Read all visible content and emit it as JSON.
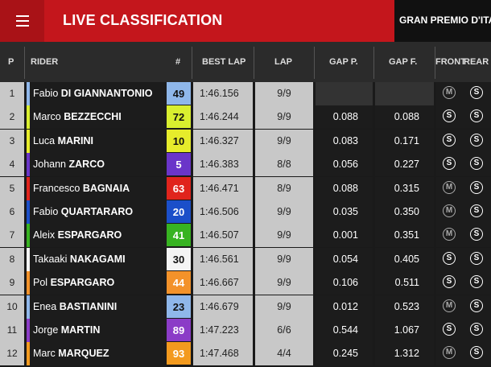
{
  "header_bar": {
    "title": "LIVE CLASSIFICATION",
    "event": "GRAN PREMIO D'ITAL",
    "menu_icon": "hamburger-menu-icon"
  },
  "columns": {
    "pos": "P",
    "rider": "RIDER",
    "number": "#",
    "best_lap": "BEST LAP",
    "lap": "LAP",
    "gap_prev": "GAP P.",
    "gap_first": "GAP F.",
    "front": "FRONT",
    "rear": "REAR"
  },
  "colors": {
    "brand_red": "#c4161c",
    "light_cell": "#c8c8c8",
    "dark_cell": "#1c1c1c"
  },
  "rows": [
    {
      "pos": "1",
      "first": "Fabio",
      "last": "DI GIANNANTONIO",
      "num": "49",
      "num_bg": "#8fb7ea",
      "num_fg": "#111",
      "best": "1:46.156",
      "lap": "9/9",
      "gap_p": "",
      "gap_f": "",
      "front": "M",
      "rear": "S"
    },
    {
      "pos": "2",
      "first": "Marco",
      "last": "BEZZECCHI",
      "num": "72",
      "num_bg": "#d9ef2f",
      "num_fg": "#111",
      "best": "1:46.244",
      "lap": "9/9",
      "gap_p": "0.088",
      "gap_f": "0.088",
      "front": "S",
      "rear": "S"
    },
    {
      "pos": "3",
      "first": "Luca",
      "last": "MARINI",
      "num": "10",
      "num_bg": "#e6ec2b",
      "num_fg": "#111",
      "best": "1:46.327",
      "lap": "9/9",
      "gap_p": "0.083",
      "gap_f": "0.171",
      "front": "S",
      "rear": "S"
    },
    {
      "pos": "4",
      "first": "Johann",
      "last": "ZARCO",
      "num": "5",
      "num_bg": "#6a35c9",
      "num_fg": "#fff",
      "best": "1:46.383",
      "lap": "8/8",
      "gap_p": "0.056",
      "gap_f": "0.227",
      "front": "S",
      "rear": "S"
    },
    {
      "pos": "5",
      "first": "Francesco",
      "last": "BAGNAIA",
      "num": "63",
      "num_bg": "#e0241c",
      "num_fg": "#fff",
      "best": "1:46.471",
      "lap": "8/9",
      "gap_p": "0.088",
      "gap_f": "0.315",
      "front": "M",
      "rear": "S"
    },
    {
      "pos": "6",
      "first": "Fabio",
      "last": "QUARTARARO",
      "num": "20",
      "num_bg": "#1b4fc9",
      "num_fg": "#fff",
      "best": "1:46.506",
      "lap": "9/9",
      "gap_p": "0.035",
      "gap_f": "0.350",
      "front": "M",
      "rear": "S"
    },
    {
      "pos": "7",
      "first": "Aleix",
      "last": "ESPARGARO",
      "num": "41",
      "num_bg": "#37b321",
      "num_fg": "#fff",
      "best": "1:46.507",
      "lap": "9/9",
      "gap_p": "0.001",
      "gap_f": "0.351",
      "front": "M",
      "rear": "S"
    },
    {
      "pos": "8",
      "first": "Takaaki",
      "last": "NAKAGAMI",
      "num": "30",
      "num_bg": "#f4f4f4",
      "num_fg": "#111",
      "best": "1:46.561",
      "lap": "9/9",
      "gap_p": "0.054",
      "gap_f": "0.405",
      "front": "S",
      "rear": "S"
    },
    {
      "pos": "9",
      "first": "Pol",
      "last": "ESPARGARO",
      "num": "44",
      "num_bg": "#f3922a",
      "num_fg": "#fff",
      "best": "1:46.667",
      "lap": "9/9",
      "gap_p": "0.106",
      "gap_f": "0.511",
      "front": "S",
      "rear": "S"
    },
    {
      "pos": "10",
      "first": "Enea",
      "last": "BASTIANINI",
      "num": "23",
      "num_bg": "#8fb7ea",
      "num_fg": "#111",
      "best": "1:46.679",
      "lap": "9/9",
      "gap_p": "0.012",
      "gap_f": "0.523",
      "front": "M",
      "rear": "S"
    },
    {
      "pos": "11",
      "first": "Jorge",
      "last": "MARTIN",
      "num": "89",
      "num_bg": "#8b3cc7",
      "num_fg": "#fff",
      "best": "1:47.223",
      "lap": "6/6",
      "gap_p": "0.544",
      "gap_f": "1.067",
      "front": "S",
      "rear": "S"
    },
    {
      "pos": "12",
      "first": "Marc",
      "last": "MARQUEZ",
      "num": "93",
      "num_bg": "#f39a1e",
      "num_fg": "#fff",
      "best": "1:47.468",
      "lap": "4/4",
      "gap_p": "0.245",
      "gap_f": "1.312",
      "front": "M",
      "rear": "S"
    }
  ]
}
